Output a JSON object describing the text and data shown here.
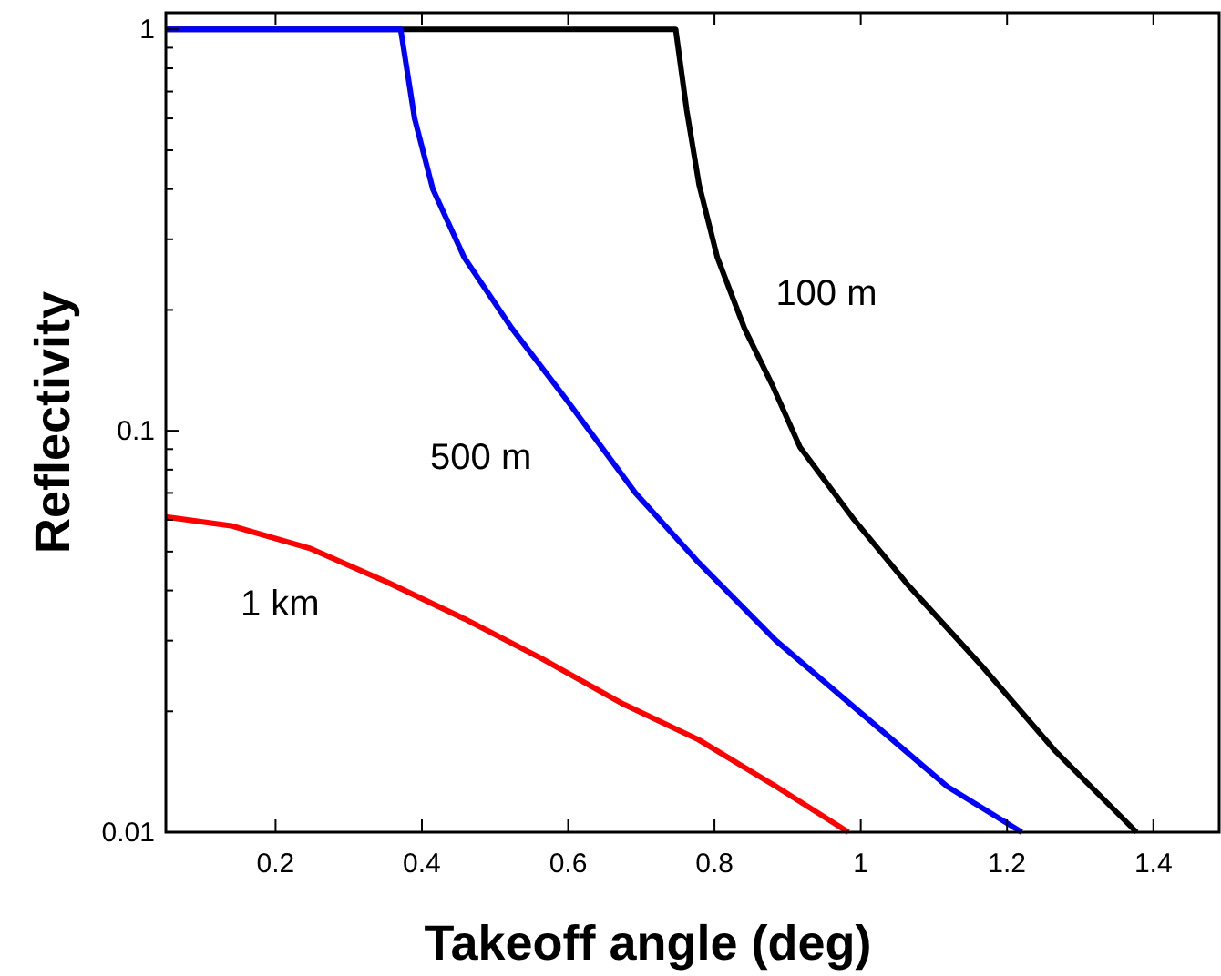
{
  "chart_data": {
    "type": "line",
    "xlabel": "Takeoff angle (deg)",
    "ylabel": "Reflectivity",
    "log": "y",
    "grid": false,
    "line_style": "solid",
    "marker": "none",
    "xlim": [
      0.05,
      1.49
    ],
    "ylim": [
      0.01,
      1.1
    ],
    "xticks": [
      0.2,
      0.4,
      0.6,
      0.8,
      1,
      1.2,
      1.4
    ],
    "yticks": [
      {
        "value": 0.01,
        "label": "0.01"
      },
      {
        "value": 0.02,
        "label": null
      },
      {
        "value": 0.03,
        "label": null
      },
      {
        "value": 0.04,
        "label": null
      },
      {
        "value": 0.05,
        "label": null
      },
      {
        "value": 0.06,
        "label": null
      },
      {
        "value": 0.07,
        "label": null
      },
      {
        "value": 0.08,
        "label": null
      },
      {
        "value": 0.09,
        "label": null
      },
      {
        "value": 0.1,
        "label": "0.1"
      },
      {
        "value": 0.2,
        "label": null
      },
      {
        "value": 0.3,
        "label": null
      },
      {
        "value": 0.4,
        "label": null
      },
      {
        "value": 0.5,
        "label": null
      },
      {
        "value": 0.6,
        "label": null
      },
      {
        "value": 0.7,
        "label": null
      },
      {
        "value": 0.8,
        "label": null
      },
      {
        "value": 0.9,
        "label": null
      },
      {
        "value": 1,
        "label": "1"
      }
    ],
    "series": [
      {
        "name": "100 m",
        "color": "#000000",
        "x": [
          0.05,
          0.747,
          0.762,
          0.779,
          0.804,
          0.841,
          0.879,
          0.917,
          0.991,
          1.066,
          1.165,
          1.265,
          1.377
        ],
        "values": [
          1,
          1,
          0.63,
          0.41,
          0.27,
          0.18,
          0.13,
          0.091,
          0.06,
          0.041,
          0.026,
          0.016,
          0.01
        ]
      },
      {
        "name": "500 m",
        "color": "#0000ff",
        "x": [
          0.05,
          0.371,
          0.39,
          0.415,
          0.458,
          0.523,
          0.597,
          0.692,
          0.778,
          0.884,
          1.012,
          1.118,
          1.22
        ],
        "values": [
          1,
          1,
          0.6,
          0.4,
          0.27,
          0.18,
          0.12,
          0.07,
          0.047,
          0.03,
          0.019,
          0.013,
          0.01
        ]
      },
      {
        "name": "1 km",
        "color": "#ff0000",
        "x": [
          0.05,
          0.139,
          0.246,
          0.352,
          0.458,
          0.565,
          0.672,
          0.778,
          0.884,
          0.983
        ],
        "values": [
          0.061,
          0.058,
          0.051,
          0.042,
          0.034,
          0.027,
          0.021,
          0.017,
          0.013,
          0.01
        ]
      }
    ]
  }
}
